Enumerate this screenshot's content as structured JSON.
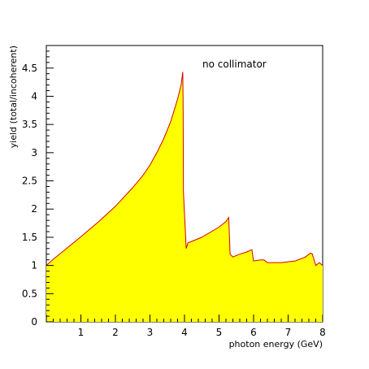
{
  "chart_data": {
    "type": "area",
    "title": "",
    "xlabel": "photon energy (GeV)",
    "ylabel": "yield (total/incoherent)",
    "xlim": [
      0,
      8
    ],
    "ylim": [
      0,
      4.9
    ],
    "x_ticks": [
      "1",
      "2",
      "3",
      "4",
      "5",
      "6",
      "7",
      "8"
    ],
    "y_ticks": [
      "0",
      "0.5",
      "1",
      "1.5",
      "2",
      "2.5",
      "3",
      "3.5",
      "4",
      "4.5"
    ],
    "annotation": "no collimator",
    "grid": false,
    "colors": {
      "fill": "#ffff00",
      "line": "#d40000",
      "axis": "#000000"
    },
    "series": [
      {
        "x": [
          0,
          0.2,
          0.5,
          1.0,
          1.5,
          2.0,
          2.5,
          2.8,
          3.0,
          3.2,
          3.4,
          3.6,
          3.8,
          3.9,
          3.95,
          3.96,
          3.97,
          4.05,
          4.1,
          4.5,
          5.0,
          5.2,
          5.28,
          5.32,
          5.4,
          5.6,
          5.8,
          5.95,
          6.0,
          6.2,
          6.3,
          6.4,
          6.8,
          7.2,
          7.5,
          7.65,
          7.7,
          7.8,
          7.9,
          8.0
        ],
        "y": [
          1.0,
          1.11,
          1.26,
          1.51,
          1.77,
          2.05,
          2.38,
          2.6,
          2.78,
          3.0,
          3.25,
          3.55,
          3.95,
          4.2,
          4.43,
          3.8,
          2.3,
          1.3,
          1.4,
          1.5,
          1.68,
          1.78,
          1.85,
          1.2,
          1.15,
          1.2,
          1.24,
          1.28,
          1.08,
          1.1,
          1.1,
          1.05,
          1.05,
          1.08,
          1.15,
          1.22,
          1.2,
          1.0,
          1.05,
          1.0
        ]
      }
    ]
  }
}
